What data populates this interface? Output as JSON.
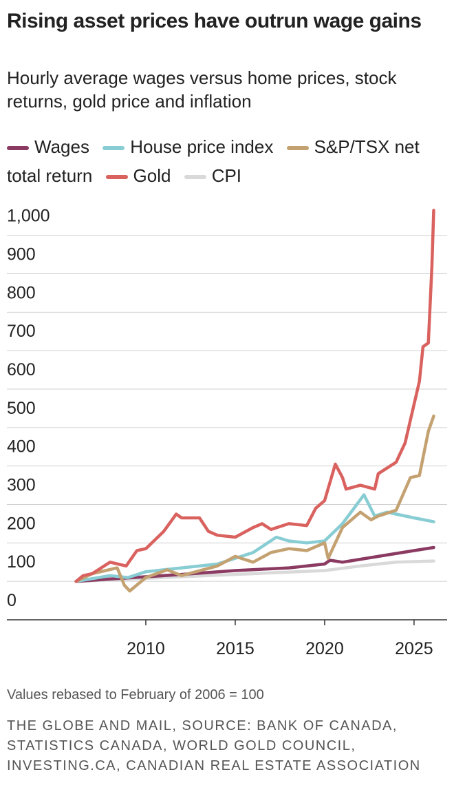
{
  "chart_data": {
    "type": "line",
    "title": "Rising asset prices have outrun wage gains",
    "subtitle": "Hourly average wages versus home prices, stock returns, gold price and inflation",
    "note": "Values rebased to February of 2006 = 100",
    "source": "THE GLOBE AND MAIL, SOURCE: BANK OF CANADA, STATISTICS CANADA, WORLD GOLD COUNCIL, INVESTING.CA, CANADIAN REAL ESTATE ASSOCIATION",
    "xlim": [
      2002.23,
      2026.85
    ],
    "xticks": [
      2010,
      2015,
      2020,
      2025
    ],
    "ylim": [
      0,
      1080
    ],
    "yticks": [
      0,
      100,
      200,
      300,
      400,
      500,
      600,
      700,
      800,
      900,
      {
        "value": 1000,
        "label": "1,000"
      }
    ],
    "grid": true,
    "series": [
      {
        "name": "Wages",
        "color": "#8b3a62",
        "x": [
          2006.1,
          2008,
          2010,
          2012,
          2015,
          2018,
          2020,
          2020.3,
          2021,
          2023,
          2025,
          2026.1
        ],
        "values": [
          100,
          106,
          112,
          118,
          128,
          135,
          145,
          155,
          150,
          165,
          180,
          188
        ]
      },
      {
        "name": "House price index",
        "color": "#88cdd3",
        "x": [
          2006.1,
          2008,
          2009,
          2010,
          2012,
          2014,
          2016,
          2017.3,
          2018,
          2019,
          2020,
          2021,
          2022.2,
          2022.8,
          2023.5,
          2024,
          2025,
          2026.1
        ],
        "values": [
          100,
          115,
          110,
          125,
          135,
          145,
          175,
          215,
          205,
          200,
          205,
          250,
          325,
          270,
          280,
          275,
          265,
          255
        ]
      },
      {
        "name": "S&P/TSX net total return",
        "color": "#c4a171",
        "x": [
          2006.1,
          2007,
          2008.4,
          2008.8,
          2009.1,
          2010,
          2011.2,
          2012,
          2014,
          2015,
          2016,
          2017,
          2018,
          2019,
          2020,
          2020.2,
          2021,
          2022,
          2022.6,
          2023,
          2024,
          2024.8,
          2025.3,
          2025.8,
          2026.1
        ],
        "values": [
          100,
          120,
          135,
          90,
          75,
          110,
          130,
          115,
          140,
          165,
          150,
          175,
          185,
          180,
          200,
          160,
          240,
          280,
          260,
          270,
          285,
          370,
          375,
          490,
          530
        ]
      },
      {
        "name": "Gold",
        "color": "#d9625f",
        "x": [
          2006.1,
          2006.5,
          2007,
          2008,
          2008.9,
          2009.5,
          2010,
          2011,
          2011.7,
          2012,
          2013,
          2013.5,
          2014,
          2015,
          2016,
          2016.5,
          2017,
          2018,
          2019,
          2019.5,
          2020,
          2020.6,
          2021,
          2021.2,
          2022,
          2022.8,
          2023,
          2024,
          2024.5,
          2025,
          2025.3,
          2025.5,
          2025.8,
          2026,
          2026.1
        ],
        "values": [
          100,
          115,
          120,
          150,
          140,
          180,
          185,
          230,
          275,
          265,
          265,
          230,
          220,
          215,
          240,
          250,
          235,
          250,
          245,
          290,
          310,
          405,
          370,
          340,
          350,
          340,
          380,
          410,
          460,
          560,
          620,
          710,
          720,
          920,
          1065
        ]
      },
      {
        "name": "CPI",
        "color": "#d9d9d9",
        "x": [
          2006.1,
          2010,
          2015,
          2020,
          2022,
          2024,
          2026.1
        ],
        "values": [
          100,
          108,
          118,
          128,
          140,
          150,
          153
        ]
      }
    ]
  }
}
